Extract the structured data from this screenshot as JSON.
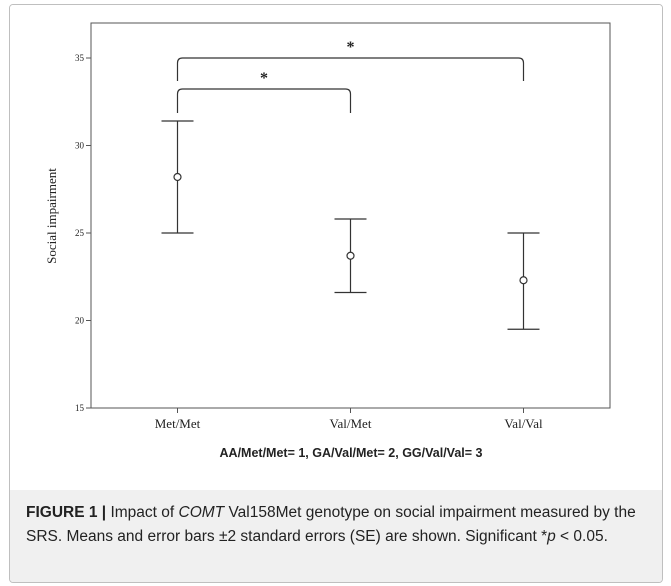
{
  "chart_data": {
    "type": "scatter",
    "categories": [
      "Met/Met",
      "Val/Met",
      "Val/Val"
    ],
    "series": [
      {
        "means": [
          28.2,
          23.7,
          22.3
        ],
        "lower": [
          25.0,
          21.6,
          19.5
        ],
        "upper": [
          31.4,
          25.8,
          25.0
        ]
      }
    ],
    "xlabel": "AA/Met/Met= 1, GA/Val/Met= 2, GG/Val/Val= 3",
    "ylabel": "Social impairment",
    "ylim": [
      15,
      37
    ],
    "yticks": [
      15,
      20,
      25,
      30,
      35
    ],
    "ytick_labels": [
      "15",
      "20",
      "25",
      "30",
      "35"
    ],
    "significance": [
      {
        "from": "Met/Met",
        "to": "Val/Met",
        "label": "*"
      },
      {
        "from": "Met/Met",
        "to": "Val/Val",
        "label": "*"
      }
    ],
    "grid": false
  },
  "caption": {
    "label": "FIGURE 1 |",
    "part1": " Impact of ",
    "gene": "COMT",
    "part2": " Val158Met genotype on social impairment measured by the SRS. Means and error bars ±2 standard errors (SE) are shown. Significant *",
    "pvar": "p",
    "part3": " < 0.05."
  }
}
